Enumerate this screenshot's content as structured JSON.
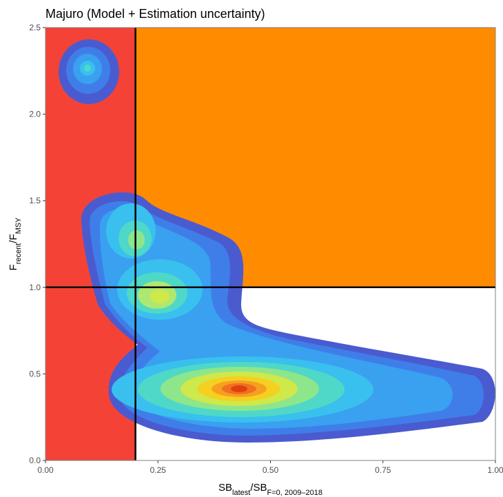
{
  "chart_data": {
    "type": "kobe",
    "title": "Majuro (Model + Estimation uncertainty)",
    "x_label": {
      "main": "SB",
      "sub": "latest",
      "sep": "/",
      "main2": "SB",
      "sub2": "F=0, 2009–2018"
    },
    "y_label": {
      "main": "F",
      "sub": "recent",
      "sep": "/",
      "main2": "F",
      "sub2": "MSY"
    },
    "xlim": [
      0,
      1
    ],
    "ylim": [
      0,
      2.5
    ],
    "xticks": [
      {
        "value": 0,
        "label": "0.00"
      },
      {
        "value": 0.25,
        "label": "0.25"
      },
      {
        "value": 0.5,
        "label": "0.50"
      },
      {
        "value": 0.75,
        "label": "0.75"
      },
      {
        "value": 1,
        "label": "1.00"
      }
    ],
    "yticks": [
      {
        "value": 0,
        "label": "0.0"
      },
      {
        "value": 0.5,
        "label": "0.5"
      },
      {
        "value": 1,
        "label": "1.0"
      },
      {
        "value": 1.5,
        "label": "1.5"
      },
      {
        "value": 2,
        "label": "2.0"
      },
      {
        "value": 2.5,
        "label": "2.5"
      }
    ],
    "ref_x": 0.2,
    "ref_y": 1,
    "colors": {
      "red_zone": "#f44336",
      "orange_zone": "#ff8c00"
    }
  }
}
